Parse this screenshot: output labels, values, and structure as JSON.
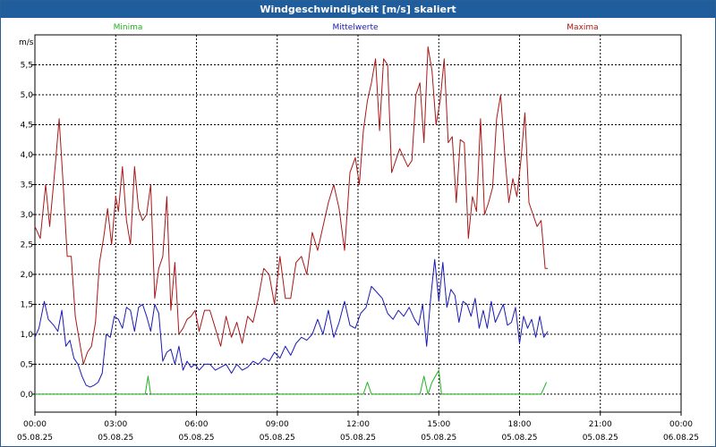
{
  "window": {
    "title": "Windgeschwindigkeit [m/s] skaliert"
  },
  "colors": {
    "titlebar": "#1f5d9c",
    "minima": "#1fb31f",
    "mittelwerte": "#1a1ab5",
    "maxima": "#a81818",
    "grid": "#000000"
  },
  "chart_data": {
    "type": "line",
    "title": "Windgeschwindigkeit [m/s] skaliert",
    "ylabel": "m/s",
    "xlabel": "",
    "ylim": [
      -0.3,
      6.0
    ],
    "xlim": [
      0,
      24
    ],
    "yticks": [
      0.0,
      0.5,
      1.0,
      1.5,
      2.0,
      2.5,
      3.0,
      3.5,
      4.0,
      4.5,
      5.0,
      5.5
    ],
    "ytick_labels": [
      "0,0",
      "0,5",
      "1,0",
      "1,5",
      "2,0",
      "2,5",
      "3,0",
      "3,5",
      "4,0",
      "4,5",
      "5,0",
      "5,5"
    ],
    "xticks": [
      {
        "x": 0,
        "time": "00:00",
        "date": "05.08.25"
      },
      {
        "x": 3,
        "time": "03:00",
        "date": "05.08.25"
      },
      {
        "x": 6,
        "time": "06:00",
        "date": "05.08.25"
      },
      {
        "x": 9,
        "time": "09:00",
        "date": "05.08.25"
      },
      {
        "x": 12,
        "time": "12:00",
        "date": "05.08.25"
      },
      {
        "x": 15,
        "time": "15:00",
        "date": "05.08.25"
      },
      {
        "x": 18,
        "time": "18:00",
        "date": "05.08.25"
      },
      {
        "x": 21,
        "time": "21:00",
        "date": "05.08.25"
      },
      {
        "x": 24,
        "time": "00:00",
        "date": "06.08.25"
      }
    ],
    "grid": true,
    "legend": [
      {
        "name": "Minima",
        "position": "left"
      },
      {
        "name": "Mittelwerte",
        "position": "center"
      },
      {
        "name": "Maxima",
        "position": "right"
      }
    ],
    "series": [
      {
        "name": "Minima",
        "colorKey": "minima",
        "x": [
          0,
          4.1,
          4.2,
          4.3,
          12.2,
          12.35,
          12.5,
          14.3,
          14.45,
          14.6,
          14.75,
          15.0,
          15.1,
          15.3,
          18.8,
          19.0
        ],
        "y": [
          0,
          0,
          0.3,
          0,
          0,
          0.2,
          0,
          0,
          0.3,
          0,
          0.2,
          0.4,
          0,
          0,
          0,
          0.2
        ]
      },
      {
        "name": "Mittelwerte",
        "colorKey": "mittelwerte",
        "x": [
          0.0,
          0.15,
          0.35,
          0.5,
          0.7,
          0.85,
          1.0,
          1.15,
          1.3,
          1.45,
          1.6,
          1.75,
          1.9,
          2.05,
          2.2,
          2.35,
          2.5,
          2.65,
          2.8,
          2.95,
          3.1,
          3.25,
          3.4,
          3.55,
          3.7,
          3.85,
          4.0,
          4.15,
          4.3,
          4.45,
          4.6,
          4.75,
          4.9,
          5.05,
          5.2,
          5.35,
          5.5,
          5.65,
          5.8,
          5.95,
          6.1,
          6.3,
          6.5,
          6.7,
          6.9,
          7.1,
          7.3,
          7.5,
          7.7,
          7.9,
          8.1,
          8.3,
          8.5,
          8.7,
          8.9,
          9.1,
          9.3,
          9.5,
          9.7,
          9.9,
          10.1,
          10.3,
          10.5,
          10.7,
          10.9,
          11.1,
          11.3,
          11.5,
          11.7,
          11.9,
          12.1,
          12.3,
          12.5,
          12.7,
          12.9,
          13.1,
          13.3,
          13.5,
          13.7,
          13.9,
          14.1,
          14.25,
          14.4,
          14.55,
          14.7,
          14.85,
          15.0,
          15.15,
          15.3,
          15.45,
          15.6,
          15.75,
          15.9,
          16.05,
          16.2,
          16.35,
          16.5,
          16.65,
          16.8,
          16.95,
          17.1,
          17.25,
          17.4,
          17.55,
          17.7,
          17.85,
          18.0,
          18.15,
          18.3,
          18.45,
          18.6,
          18.75,
          18.9,
          19.05
        ],
        "y": [
          0.95,
          1.1,
          1.55,
          1.25,
          1.15,
          1.05,
          1.4,
          0.8,
          0.9,
          0.6,
          0.5,
          0.3,
          0.15,
          0.12,
          0.15,
          0.2,
          0.35,
          1.0,
          0.95,
          1.3,
          1.25,
          1.1,
          1.45,
          1.4,
          1.05,
          1.45,
          1.5,
          1.3,
          1.05,
          1.5,
          1.35,
          0.55,
          0.7,
          0.75,
          0.5,
          0.8,
          0.4,
          0.55,
          0.45,
          0.5,
          0.4,
          0.5,
          0.5,
          0.4,
          0.45,
          0.5,
          0.35,
          0.5,
          0.4,
          0.45,
          0.55,
          0.5,
          0.6,
          0.55,
          0.7,
          0.6,
          0.8,
          0.65,
          0.85,
          0.95,
          0.9,
          1.0,
          1.25,
          1.0,
          1.4,
          0.95,
          1.2,
          1.55,
          1.15,
          1.1,
          1.35,
          1.45,
          1.8,
          1.7,
          1.6,
          1.35,
          1.25,
          1.4,
          1.3,
          1.45,
          1.25,
          1.15,
          1.5,
          0.8,
          1.6,
          2.25,
          1.55,
          2.2,
          1.45,
          1.75,
          1.65,
          1.2,
          1.55,
          1.5,
          1.3,
          1.6,
          1.1,
          1.4,
          1.1,
          1.55,
          1.2,
          1.35,
          1.5,
          1.15,
          1.2,
          1.45,
          0.85,
          1.3,
          1.1,
          1.25,
          0.95,
          1.3,
          0.95,
          1.05
        ]
      },
      {
        "name": "Maxima",
        "colorKey": "maxima",
        "x": [
          0.0,
          0.2,
          0.4,
          0.55,
          0.75,
          0.9,
          1.05,
          1.2,
          1.35,
          1.5,
          1.65,
          1.8,
          1.95,
          2.1,
          2.25,
          2.4,
          2.55,
          2.7,
          2.85,
          3.0,
          3.1,
          3.25,
          3.4,
          3.55,
          3.7,
          3.85,
          4.0,
          4.15,
          4.3,
          4.45,
          4.6,
          4.75,
          4.9,
          5.05,
          5.2,
          5.35,
          5.5,
          5.65,
          5.8,
          5.95,
          6.1,
          6.3,
          6.5,
          6.7,
          6.9,
          7.1,
          7.3,
          7.5,
          7.7,
          7.9,
          8.1,
          8.3,
          8.5,
          8.7,
          8.9,
          9.1,
          9.3,
          9.5,
          9.7,
          9.9,
          10.1,
          10.3,
          10.5,
          10.7,
          10.9,
          11.1,
          11.3,
          11.5,
          11.7,
          11.9,
          12.05,
          12.2,
          12.35,
          12.5,
          12.65,
          12.8,
          12.95,
          13.1,
          13.25,
          13.4,
          13.55,
          13.7,
          13.85,
          14.0,
          14.15,
          14.3,
          14.45,
          14.6,
          14.75,
          14.9,
          15.05,
          15.2,
          15.35,
          15.5,
          15.65,
          15.8,
          15.95,
          16.1,
          16.25,
          16.4,
          16.55,
          16.7,
          16.85,
          17.0,
          17.15,
          17.3,
          17.45,
          17.6,
          17.75,
          17.9,
          18.05,
          18.2,
          18.35,
          18.5,
          18.65,
          18.8,
          18.95,
          19.05
        ],
        "y": [
          2.8,
          2.6,
          3.5,
          2.8,
          3.8,
          4.6,
          3.5,
          2.3,
          2.3,
          1.3,
          0.9,
          0.5,
          0.7,
          0.8,
          1.2,
          2.2,
          2.6,
          3.1,
          2.5,
          3.3,
          3.05,
          3.8,
          2.9,
          2.5,
          3.8,
          3.1,
          2.9,
          3.0,
          3.5,
          1.6,
          2.1,
          2.3,
          3.3,
          1.4,
          2.2,
          1.0,
          1.1,
          1.25,
          1.3,
          1.4,
          1.05,
          1.4,
          1.4,
          1.1,
          0.8,
          1.3,
          0.95,
          1.2,
          0.85,
          1.3,
          1.2,
          1.6,
          2.1,
          2.0,
          1.5,
          2.3,
          1.6,
          1.6,
          2.2,
          2.3,
          2.0,
          2.7,
          2.4,
          2.8,
          3.2,
          3.5,
          3.1,
          2.4,
          3.7,
          3.95,
          3.5,
          4.4,
          4.9,
          5.2,
          5.6,
          4.4,
          5.6,
          5.5,
          3.7,
          3.9,
          4.1,
          3.95,
          3.8,
          3.9,
          5.0,
          5.2,
          4.2,
          5.8,
          5.4,
          4.5,
          4.9,
          5.6,
          4.2,
          4.3,
          3.2,
          4.25,
          4.2,
          2.6,
          3.3,
          3.05,
          4.6,
          3.0,
          3.2,
          3.45,
          4.6,
          5.0,
          4.0,
          3.2,
          3.6,
          3.3,
          3.9,
          4.7,
          3.2,
          3.0,
          2.8,
          2.9,
          2.1,
          2.1
        ]
      }
    ]
  }
}
